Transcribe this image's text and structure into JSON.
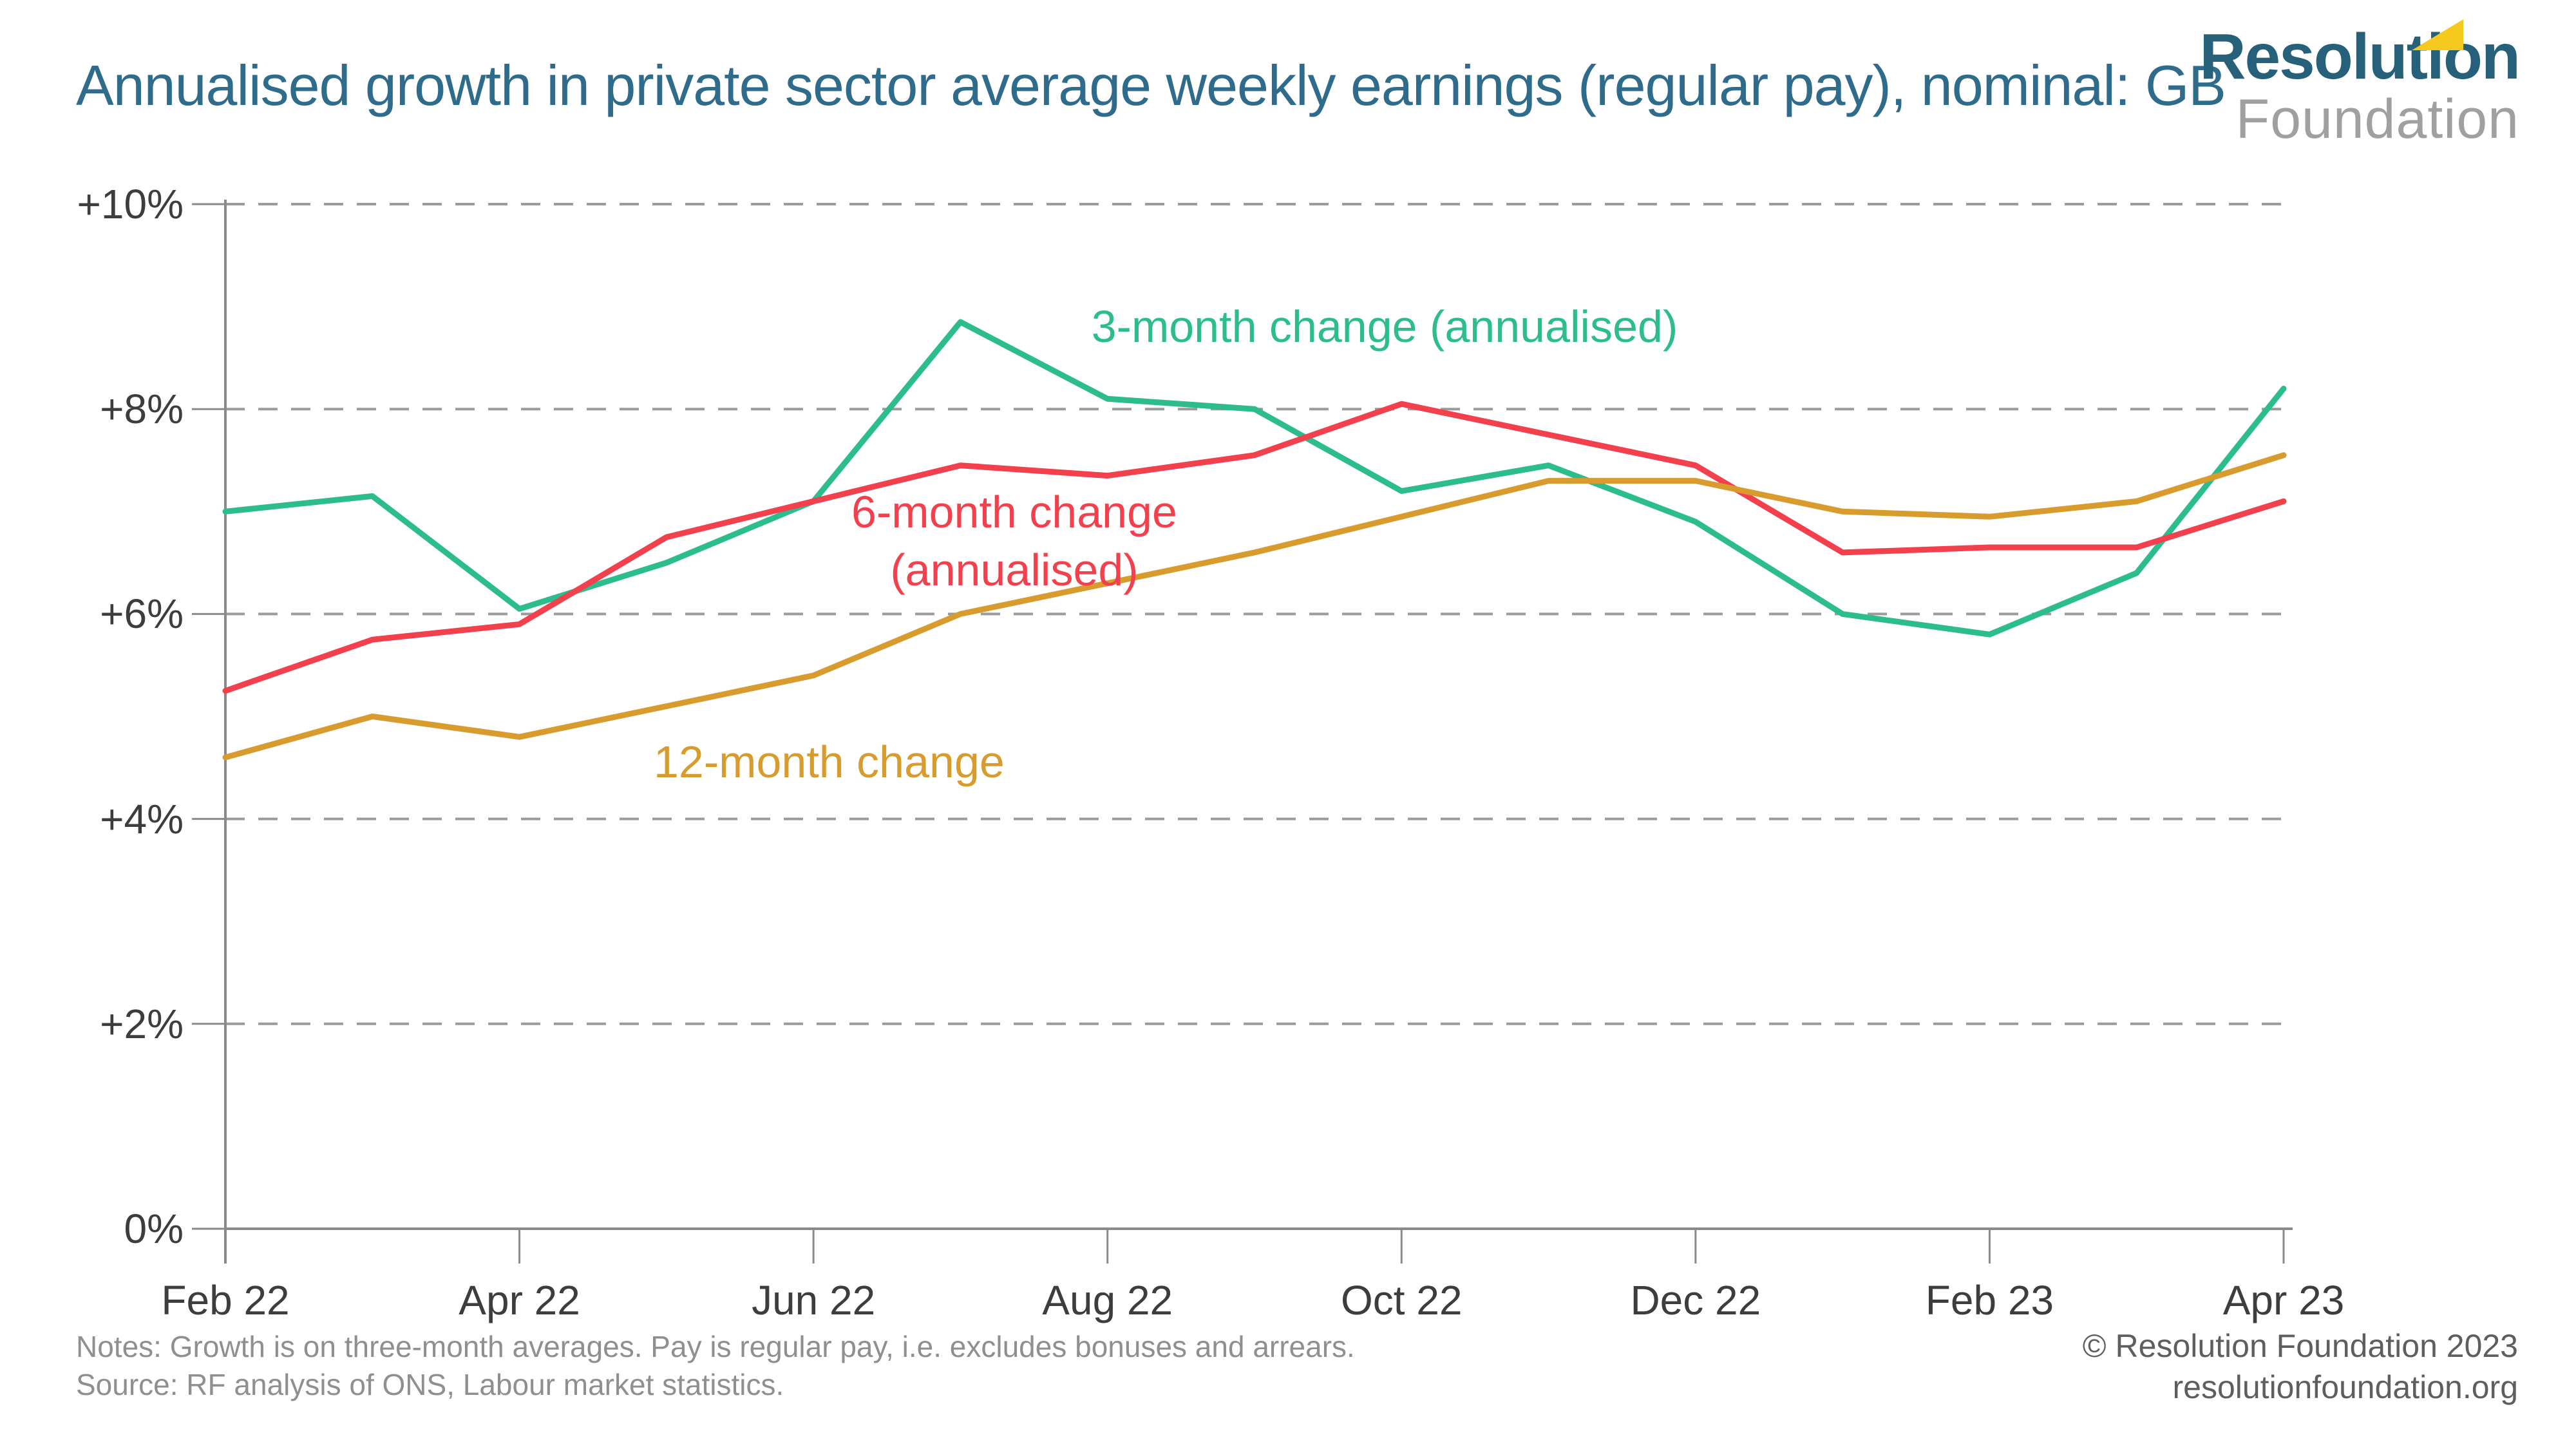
{
  "header": {
    "title": "Annualised growth in private sector average weekly earnings (regular pay), nominal: GB",
    "title_color": "#2f6c8b",
    "logo": {
      "line1": "Resolution",
      "line2": "Foundation",
      "line1_color": "#266179",
      "line2_color": "#a0a0a0",
      "flag_color": "#f5c91d",
      "flag_icon": "yellow-pennant-triangle"
    }
  },
  "chart_data": {
    "type": "line",
    "title": "Annualised growth in private sector average weekly earnings (regular pay), nominal: GB",
    "categories": [
      "Feb 22",
      "Mar 22",
      "Apr 22",
      "May 22",
      "Jun 22",
      "Jul 22",
      "Aug 22",
      "Sep 22",
      "Oct 22",
      "Nov 22",
      "Dec 22",
      "Jan 23",
      "Feb 23",
      "Mar 23",
      "Apr 23"
    ],
    "x_tick_labels": [
      "Feb 22",
      "Apr 22",
      "Jun 22",
      "Aug 22",
      "Oct 22",
      "Dec 22",
      "Feb 23",
      "Apr 23"
    ],
    "y_tick_labels": [
      "+10%",
      "+8%",
      "+6%",
      "+4%",
      "+2%",
      "0%"
    ],
    "y_tick_values": [
      10,
      8,
      6,
      4,
      2,
      0
    ],
    "ylim": [
      0,
      10
    ],
    "grid": "horizontal-dashed",
    "legend_position": "inline-annotations",
    "series": [
      {
        "name": "3-month change (annualised)",
        "color": "#2dbd8d",
        "values": [
          7.0,
          7.15,
          6.05,
          6.5,
          7.1,
          8.85,
          8.1,
          8.0,
          7.2,
          7.45,
          6.9,
          6.0,
          5.8,
          6.4,
          8.2
        ]
      },
      {
        "name": "6-month change (annualised)",
        "color": "#f2404d",
        "values": [
          5.25,
          5.75,
          5.9,
          6.75,
          7.1,
          7.45,
          7.35,
          7.55,
          8.05,
          7.75,
          7.45,
          6.6,
          6.65,
          6.65,
          7.1
        ]
      },
      {
        "name": "12-month change",
        "color": "#d89b2e",
        "values": [
          4.6,
          5.0,
          4.8,
          5.1,
          5.4,
          6.0,
          6.3,
          6.6,
          6.95,
          7.3,
          7.3,
          7.0,
          6.95,
          7.1,
          7.55
        ]
      }
    ]
  },
  "annotations": {
    "label_3m": "3-month change (annualised)",
    "label_6m_line1": "6-month change",
    "label_6m_line2": "(annualised)",
    "label_12m": "12-month change"
  },
  "footer": {
    "notes": "Notes: Growth is on three-month averages. Pay is regular pay, i.e. excludes bonuses and arrears.",
    "source": "Source: RF analysis of ONS, Labour market statistics.",
    "copyright": "© Resolution Foundation 2023",
    "website": "resolutionfoundation.org"
  }
}
